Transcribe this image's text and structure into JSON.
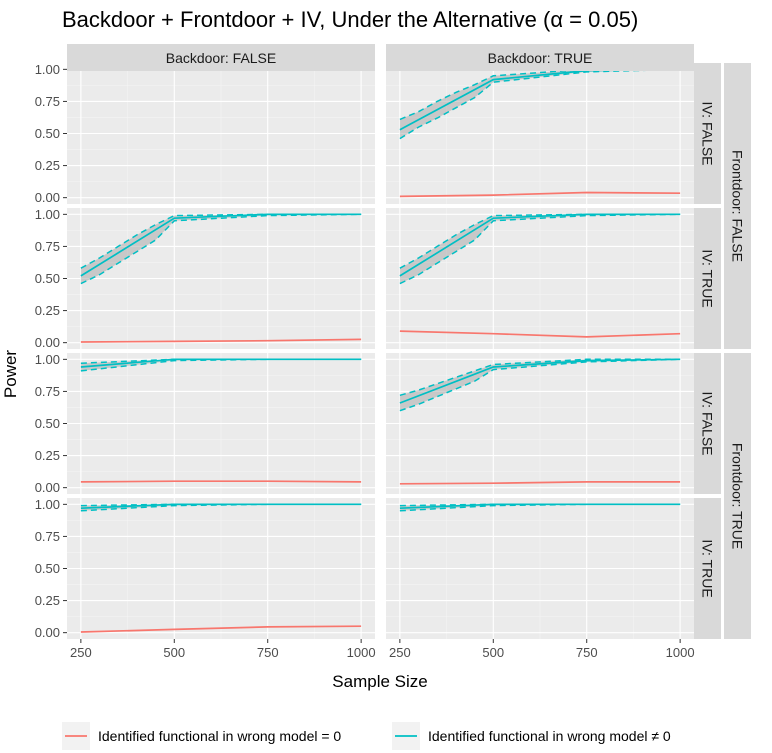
{
  "chart_data": {
    "type": "line",
    "title": "Backdoor + Frontdoor + IV, Under the Alternative (α = 0.05)",
    "xlabel": "Sample Size",
    "ylabel": "Power",
    "xlim": [
      250,
      1000
    ],
    "ylim": [
      0,
      1
    ],
    "x_ticks": [
      250,
      500,
      750,
      1000
    ],
    "x_tick_labels": [
      "250",
      "500",
      "750",
      "1000"
    ],
    "y_ticks": [
      0,
      0.25,
      0.5,
      0.75,
      1
    ],
    "y_tick_labels": [
      "0.00",
      "0.25",
      "0.50",
      "0.75",
      "1.00"
    ],
    "grid": true,
    "legend_position": "bottom",
    "colors": {
      "red": "#f8766d",
      "teal": "#00bfc4",
      "ribbon": "#a6a6a6",
      "panel": "#ebebeb",
      "strip": "#d9d9d9"
    },
    "column_strips": [
      "Backdoor: FALSE",
      "Backdoor: TRUE"
    ],
    "row_strips_inner": [
      "IV: FALSE",
      "IV: TRUE",
      "IV: FALSE",
      "IV: TRUE"
    ],
    "row_strips_outer": [
      "Frontdoor: FALSE",
      "Frontdoor: TRUE"
    ],
    "legend": [
      {
        "label": "Identified functional in wrong model = 0",
        "color": "#f8766d"
      },
      {
        "label": "Identified functional in wrong model ≠ 0",
        "color": "#00bfc4"
      }
    ],
    "panels": [
      {
        "row": 0,
        "col": 0,
        "empty": true
      },
      {
        "row": 0,
        "col": 1,
        "red": [
          [
            250,
            0.01
          ],
          [
            500,
            0.02
          ],
          [
            750,
            0.04
          ],
          [
            1000,
            0.035
          ]
        ],
        "teal": [
          [
            250,
            0.53
          ],
          [
            500,
            0.92
          ],
          [
            750,
            0.99
          ],
          [
            1000,
            1.0
          ]
        ],
        "teal_lower": [
          [
            250,
            0.46
          ],
          [
            300,
            0.55
          ],
          [
            350,
            0.62
          ],
          [
            400,
            0.7
          ],
          [
            450,
            0.78
          ],
          [
            500,
            0.9
          ],
          [
            750,
            0.98
          ],
          [
            1000,
            1.0
          ]
        ],
        "teal_upper": [
          [
            250,
            0.61
          ],
          [
            300,
            0.67
          ],
          [
            350,
            0.75
          ],
          [
            400,
            0.82
          ],
          [
            450,
            0.88
          ],
          [
            500,
            0.95
          ],
          [
            750,
            1.0
          ],
          [
            1000,
            1.0
          ]
        ]
      },
      {
        "row": 1,
        "col": 0,
        "red": [
          [
            250,
            0.005
          ],
          [
            500,
            0.01
          ],
          [
            750,
            0.015
          ],
          [
            1000,
            0.025
          ]
        ],
        "teal": [
          [
            250,
            0.52
          ],
          [
            500,
            0.97
          ],
          [
            750,
            1.0
          ],
          [
            1000,
            1.0
          ]
        ],
        "teal_lower": [
          [
            250,
            0.46
          ],
          [
            300,
            0.53
          ],
          [
            350,
            0.62
          ],
          [
            400,
            0.71
          ],
          [
            450,
            0.8
          ],
          [
            500,
            0.95
          ],
          [
            750,
            0.99
          ],
          [
            1000,
            1.0
          ]
        ],
        "teal_upper": [
          [
            250,
            0.58
          ],
          [
            300,
            0.66
          ],
          [
            350,
            0.75
          ],
          [
            400,
            0.84
          ],
          [
            450,
            0.92
          ],
          [
            500,
            0.99
          ],
          [
            750,
            1.0
          ],
          [
            1000,
            1.0
          ]
        ]
      },
      {
        "row": 1,
        "col": 1,
        "red": [
          [
            250,
            0.09
          ],
          [
            500,
            0.07
          ],
          [
            750,
            0.045
          ],
          [
            1000,
            0.07
          ]
        ],
        "teal": [
          [
            250,
            0.52
          ],
          [
            500,
            0.97
          ],
          [
            750,
            1.0
          ],
          [
            1000,
            1.0
          ]
        ],
        "teal_lower": [
          [
            250,
            0.46
          ],
          [
            300,
            0.53
          ],
          [
            350,
            0.62
          ],
          [
            400,
            0.71
          ],
          [
            450,
            0.8
          ],
          [
            500,
            0.95
          ],
          [
            750,
            0.99
          ],
          [
            1000,
            1.0
          ]
        ],
        "teal_upper": [
          [
            250,
            0.58
          ],
          [
            300,
            0.66
          ],
          [
            350,
            0.75
          ],
          [
            400,
            0.84
          ],
          [
            450,
            0.92
          ],
          [
            500,
            0.99
          ],
          [
            750,
            1.0
          ],
          [
            1000,
            1.0
          ]
        ]
      },
      {
        "row": 2,
        "col": 0,
        "red": [
          [
            250,
            0.045
          ],
          [
            500,
            0.05
          ],
          [
            750,
            0.05
          ],
          [
            1000,
            0.045
          ]
        ],
        "teal": [
          [
            250,
            0.94
          ],
          [
            500,
            1.0
          ],
          [
            750,
            1.0
          ],
          [
            1000,
            1.0
          ]
        ],
        "teal_lower": [
          [
            250,
            0.91
          ],
          [
            500,
            0.99
          ],
          [
            750,
            1.0
          ],
          [
            1000,
            1.0
          ]
        ],
        "teal_upper": [
          [
            250,
            0.97
          ],
          [
            500,
            1.0
          ],
          [
            750,
            1.0
          ],
          [
            1000,
            1.0
          ]
        ]
      },
      {
        "row": 2,
        "col": 1,
        "red": [
          [
            250,
            0.03
          ],
          [
            500,
            0.035
          ],
          [
            750,
            0.045
          ],
          [
            1000,
            0.045
          ]
        ],
        "teal": [
          [
            250,
            0.66
          ],
          [
            500,
            0.94
          ],
          [
            750,
            0.99
          ],
          [
            1000,
            1.0
          ]
        ],
        "teal_lower": [
          [
            250,
            0.6
          ],
          [
            300,
            0.65
          ],
          [
            350,
            0.71
          ],
          [
            400,
            0.77
          ],
          [
            450,
            0.83
          ],
          [
            500,
            0.92
          ],
          [
            750,
            0.98
          ],
          [
            1000,
            1.0
          ]
        ],
        "teal_upper": [
          [
            250,
            0.72
          ],
          [
            300,
            0.76
          ],
          [
            350,
            0.81
          ],
          [
            400,
            0.86
          ],
          [
            450,
            0.91
          ],
          [
            500,
            0.96
          ],
          [
            750,
            1.0
          ],
          [
            1000,
            1.0
          ]
        ]
      },
      {
        "row": 3,
        "col": 0,
        "red": [
          [
            250,
            0.005
          ],
          [
            500,
            0.025
          ],
          [
            750,
            0.045
          ],
          [
            1000,
            0.05
          ]
        ],
        "teal": [
          [
            250,
            0.97
          ],
          [
            500,
            1.0
          ],
          [
            750,
            1.0
          ],
          [
            1000,
            1.0
          ]
        ],
        "teal_lower": [
          [
            250,
            0.95
          ],
          [
            500,
            0.99
          ],
          [
            750,
            1.0
          ],
          [
            1000,
            1.0
          ]
        ],
        "teal_upper": [
          [
            250,
            0.99
          ],
          [
            500,
            1.0
          ],
          [
            750,
            1.0
          ],
          [
            1000,
            1.0
          ]
        ]
      },
      {
        "row": 3,
        "col": 1,
        "red": [],
        "teal": [
          [
            250,
            0.97
          ],
          [
            500,
            1.0
          ],
          [
            750,
            1.0
          ],
          [
            1000,
            1.0
          ]
        ],
        "teal_lower": [
          [
            250,
            0.95
          ],
          [
            500,
            0.99
          ],
          [
            750,
            1.0
          ],
          [
            1000,
            1.0
          ]
        ],
        "teal_upper": [
          [
            250,
            0.99
          ],
          [
            500,
            1.0
          ],
          [
            750,
            1.0
          ],
          [
            1000,
            1.0
          ]
        ]
      }
    ]
  }
}
